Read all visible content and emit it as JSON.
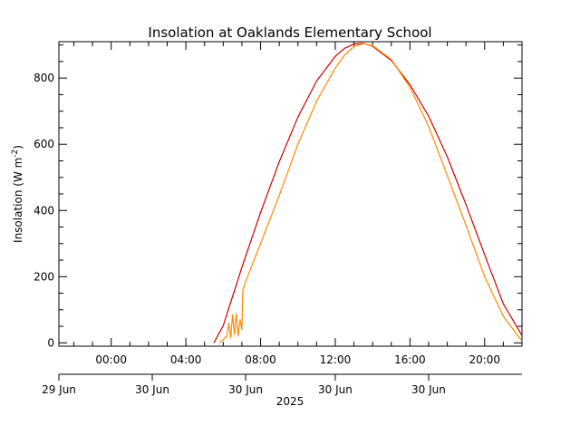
{
  "chart_data": {
    "type": "line",
    "title": "Insolation at Oaklands Elementary School",
    "ylabel": "Insolation (W m",
    "ylabel_sup": "-2",
    "ylabel_close": ")",
    "ylim": [
      -10,
      910
    ],
    "xlim_hours": [
      -2.8,
      22.0
    ],
    "yticks": [
      0,
      200,
      400,
      600,
      800
    ],
    "xticks": [
      {
        "hour": 0,
        "label": "00:00"
      },
      {
        "hour": 4,
        "label": "04:00"
      },
      {
        "hour": 8,
        "label": "08:00"
      },
      {
        "hour": 12,
        "label": "12:00"
      },
      {
        "hour": 16,
        "label": "16:00"
      },
      {
        "hour": 20,
        "label": "20:00"
      }
    ],
    "date_ticks": [
      {
        "hour": -2.8,
        "label": "29 Jun"
      },
      {
        "hour": 2.2,
        "label": "30 Jun"
      },
      {
        "hour": 7.2,
        "label": "30 Jun"
      },
      {
        "hour": 12.0,
        "label": "30 Jun"
      },
      {
        "hour": 17.0,
        "label": "30 Jun"
      }
    ],
    "year_label": "2025",
    "series": [
      {
        "color": "#cc0000",
        "x": [
          5.5,
          6.0,
          7.0,
          8.0,
          9.0,
          10.0,
          11.0,
          12.0,
          12.5,
          13.0,
          13.5,
          14.0,
          15.0,
          16.0,
          17.0,
          18.0,
          19.0,
          20.0,
          21.0,
          22.0
        ],
        "y": [
          0,
          52,
          228,
          394,
          547,
          682,
          791,
          866,
          890,
          903,
          905,
          896,
          853,
          780,
          685,
          562,
          418,
          266,
          118,
          22
        ]
      },
      {
        "color": "#ff8800",
        "x": [
          5.8,
          6.0,
          6.2,
          6.3,
          6.4,
          6.5,
          6.6,
          6.7,
          6.8,
          6.9,
          7.0,
          7.05,
          7.2,
          8.0,
          9.0,
          10.0,
          11.0,
          12.0,
          12.5,
          13.0,
          13.5,
          14.0,
          15.0,
          16.0,
          17.0,
          18.0,
          19.0,
          20.0,
          21.0,
          22.0
        ],
        "y": [
          0,
          10,
          20,
          60,
          15,
          85,
          25,
          88,
          20,
          70,
          40,
          160,
          185,
          300,
          445,
          600,
          730,
          830,
          870,
          895,
          904,
          898,
          856,
          772,
          654,
          505,
          355,
          200,
          80,
          5
        ]
      }
    ]
  }
}
